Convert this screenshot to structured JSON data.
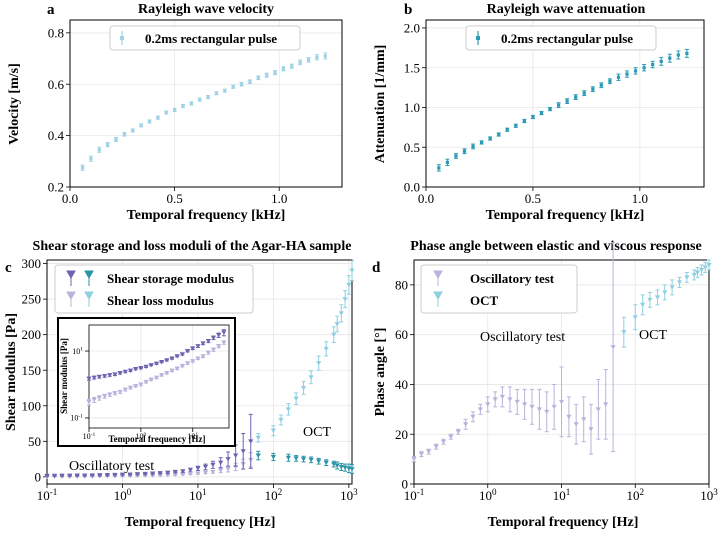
{
  "panels": [
    {
      "letter": "a",
      "title": "Rayleigh wave velocity"
    },
    {
      "letter": "b",
      "title": "Rayleigh wave attenuation"
    },
    {
      "letter": "c",
      "title": "Shear storage and loss moduli of the Agar-HA sample"
    },
    {
      "letter": "d",
      "title": "Phase angle between elastic and viscous response"
    }
  ],
  "colors": {
    "pulse_a": "#9fd2e6",
    "pulse_b": "#2b9bb5",
    "storage_osc": "#6b65b0",
    "storage_oct": "#2a93a8",
    "loss_osc": "#b7b3dc",
    "loss_oct": "#8fcfe2",
    "phase_osc": "#b7b3dc",
    "phase_oct": "#8fcfe2",
    "grid": "#e6e6e6"
  },
  "chart_data": [
    {
      "id": "a",
      "type": "scatter",
      "title": "Rayleigh wave velocity",
      "xlabel": "Temporal frequency [kHz]",
      "ylabel": "Velocity [m/s]",
      "xlim": [
        0,
        1.3
      ],
      "ylim": [
        0.2,
        0.85
      ],
      "xticks": [
        0.0,
        0.5,
        1.0
      ],
      "xticklabels": [
        "0.0",
        "0.5",
        "1.0"
      ],
      "yticks": [
        0.2,
        0.4,
        0.6,
        0.8
      ],
      "yticklabels": [
        "0.2",
        "0.4",
        "0.6",
        "0.8"
      ],
      "legend": [
        "0.2ms rectangular pulse"
      ],
      "legend_position": "top-left",
      "series": [
        {
          "name": "0.2ms rectangular pulse",
          "x": [
            0.06,
            0.1,
            0.14,
            0.18,
            0.22,
            0.26,
            0.3,
            0.34,
            0.38,
            0.42,
            0.46,
            0.5,
            0.54,
            0.58,
            0.62,
            0.66,
            0.7,
            0.74,
            0.78,
            0.82,
            0.86,
            0.9,
            0.94,
            0.98,
            1.02,
            1.06,
            1.1,
            1.14,
            1.18,
            1.22
          ],
          "y": [
            0.275,
            0.31,
            0.345,
            0.365,
            0.385,
            0.405,
            0.42,
            0.44,
            0.455,
            0.47,
            0.49,
            0.5,
            0.515,
            0.525,
            0.54,
            0.55,
            0.565,
            0.575,
            0.59,
            0.6,
            0.61,
            0.625,
            0.635,
            0.645,
            0.66,
            0.67,
            0.685,
            0.695,
            0.705,
            0.71
          ],
          "err": [
            0.01,
            0.01,
            0.01,
            0.008,
            0.008,
            0.007,
            0.006,
            0.006,
            0.006,
            0.006,
            0.006,
            0.006,
            0.006,
            0.006,
            0.006,
            0.006,
            0.006,
            0.006,
            0.006,
            0.007,
            0.007,
            0.007,
            0.008,
            0.008,
            0.008,
            0.008,
            0.009,
            0.009,
            0.01,
            0.012
          ]
        }
      ]
    },
    {
      "id": "b",
      "type": "scatter",
      "title": "Rayleigh wave attenuation",
      "xlabel": "Temporal frequency [kHz]",
      "ylabel": "Attenuation [1/mm]",
      "xlim": [
        0,
        1.3
      ],
      "ylim": [
        0,
        2.1
      ],
      "xticks": [
        0.0,
        0.5,
        1.0
      ],
      "xticklabels": [
        "0.0",
        "0.5",
        "1.0"
      ],
      "yticks": [
        0.0,
        0.5,
        1.0,
        1.5,
        2.0
      ],
      "yticklabels": [
        "0.0",
        "0.5",
        "1.0",
        "1.5",
        "2.0"
      ],
      "legend": [
        "0.2ms rectangular pulse"
      ],
      "legend_position": "top-left",
      "series": [
        {
          "name": "0.2ms rectangular pulse",
          "x": [
            0.06,
            0.1,
            0.14,
            0.18,
            0.22,
            0.26,
            0.3,
            0.34,
            0.38,
            0.42,
            0.46,
            0.5,
            0.54,
            0.58,
            0.62,
            0.66,
            0.7,
            0.74,
            0.78,
            0.82,
            0.86,
            0.9,
            0.94,
            0.98,
            1.02,
            1.06,
            1.1,
            1.14,
            1.18,
            1.22
          ],
          "y": [
            0.24,
            0.31,
            0.39,
            0.45,
            0.51,
            0.56,
            0.61,
            0.66,
            0.72,
            0.77,
            0.83,
            0.88,
            0.93,
            0.98,
            1.03,
            1.08,
            1.13,
            1.18,
            1.23,
            1.28,
            1.33,
            1.38,
            1.42,
            1.46,
            1.5,
            1.54,
            1.58,
            1.62,
            1.66,
            1.68
          ],
          "err": [
            0.04,
            0.04,
            0.03,
            0.03,
            0.03,
            0.02,
            0.02,
            0.02,
            0.02,
            0.02,
            0.02,
            0.02,
            0.02,
            0.02,
            0.03,
            0.03,
            0.03,
            0.03,
            0.03,
            0.03,
            0.03,
            0.04,
            0.04,
            0.04,
            0.04,
            0.04,
            0.05,
            0.05,
            0.05,
            0.05
          ]
        }
      ]
    },
    {
      "id": "c",
      "type": "scatter",
      "title": "Shear storage and loss moduli of the Agar-HA sample",
      "xlabel": "Temporal frequency [Hz]",
      "ylabel": "Shear modulus [Pa]",
      "xscale": "log",
      "xlim": [
        0.1,
        1100
      ],
      "ylim": [
        -10,
        305
      ],
      "xticks": [
        0.1,
        1,
        10,
        100,
        1000
      ],
      "xticklabels": [
        "10^-1",
        "10^0",
        "10^1",
        "10^2",
        "10^3"
      ],
      "yticks": [
        0,
        50,
        100,
        150,
        200,
        250,
        300
      ],
      "yticklabels": [
        "0",
        "50",
        "100",
        "150",
        "200",
        "250",
        "300"
      ],
      "legend": [
        "Shear storage modulus",
        "Shear loss modulus"
      ],
      "legend_position": "top-left",
      "annotations": [
        "Oscillatory test",
        "OCT"
      ],
      "series": [
        {
          "name": "Shear storage modulus (oscillatory)",
          "x": [
            0.1,
            0.126,
            0.158,
            0.2,
            0.251,
            0.316,
            0.398,
            0.501,
            0.631,
            0.794,
            1.0,
            1.26,
            1.58,
            2.0,
            2.51,
            3.16,
            3.98,
            5.01,
            6.31,
            7.94,
            10,
            12.6,
            15.8,
            20,
            25.1,
            31.6,
            39.8,
            50.1
          ],
          "y": [
            1.5,
            1.6,
            1.7,
            1.8,
            1.9,
            2.0,
            2.2,
            2.4,
            2.6,
            2.9,
            3.1,
            3.4,
            3.8,
            4.2,
            4.7,
            5.3,
            6.0,
            7,
            8,
            10,
            12,
            14,
            17,
            20,
            25,
            30,
            36,
            50
          ],
          "err": [
            0.5,
            0.5,
            0.5,
            0.5,
            0.5,
            0.5,
            0.5,
            0.5,
            0.5,
            0.5,
            0.5,
            0.6,
            0.6,
            0.6,
            0.7,
            0.8,
            1,
            1,
            1.5,
            2,
            3,
            4,
            5,
            7,
            10,
            15,
            25,
            38
          ]
        },
        {
          "name": "Shear storage modulus (OCT)",
          "x": [
            63,
            100,
            158,
            200,
            251,
            316,
            398,
            501,
            631,
            700,
            794,
            891,
            1000,
            1100
          ],
          "y": [
            30,
            28,
            27,
            26,
            25,
            24,
            22,
            20,
            18,
            16,
            14,
            13,
            12,
            11
          ],
          "err": [
            6,
            5,
            5,
            4,
            4,
            4,
            4,
            4,
            4,
            5,
            5,
            5,
            6,
            6
          ]
        },
        {
          "name": "Shear loss modulus (oscillatory)",
          "x": [
            0.1,
            0.126,
            0.158,
            0.2,
            0.251,
            0.316,
            0.398,
            0.501,
            0.631,
            0.794,
            1.0,
            1.26,
            1.58,
            2.0,
            2.51,
            3.16,
            3.98,
            5.01,
            6.31,
            7.94,
            10,
            12.6,
            15.8,
            20,
            25.1,
            31.6,
            39.8,
            50.1
          ],
          "y": [
            0.3,
            0.35,
            0.4,
            0.45,
            0.5,
            0.55,
            0.6,
            0.7,
            0.8,
            0.9,
            1.0,
            1.2,
            1.4,
            1.6,
            1.9,
            2.2,
            2.6,
            3,
            3.6,
            4.3,
            5,
            6,
            7,
            9,
            11,
            14,
            18,
            24
          ],
          "err": [
            0.2,
            0.2,
            0.2,
            0.2,
            0.2,
            0.2,
            0.2,
            0.2,
            0.2,
            0.2,
            0.3,
            0.3,
            0.3,
            0.4,
            0.4,
            0.5,
            0.6,
            0.7,
            0.8,
            1,
            1.2,
            1.5,
            2,
            3,
            4,
            5,
            7,
            10
          ]
        },
        {
          "name": "Shear loss modulus (OCT)",
          "x": [
            63,
            100,
            126,
            158,
            200,
            251,
            316,
            398,
            501,
            631,
            700,
            794,
            891,
            1000,
            1100
          ],
          "y": [
            55,
            65,
            80,
            95,
            110,
            125,
            140,
            160,
            180,
            200,
            215,
            230,
            250,
            270,
            290
          ],
          "err": [
            6,
            7,
            7,
            8,
            8,
            9,
            9,
            10,
            10,
            11,
            11,
            12,
            12,
            13,
            14
          ]
        }
      ],
      "inset": {
        "xlabel": "Temporal frequency [Hz]",
        "ylabel": "Shear modulus [Pa]",
        "xscale": "log",
        "yscale": "log",
        "xlim": [
          0.1,
          50
        ],
        "ylim": [
          0.05,
          60
        ],
        "xticks": [
          0.1,
          1,
          10
        ],
        "xticklabels": [
          "10^-1",
          "10^0",
          "10^1"
        ],
        "yticks": [
          0.1,
          10
        ],
        "yticklabels": [
          "10^-1",
          "10^1"
        ]
      }
    },
    {
      "id": "d",
      "type": "scatter",
      "title": "Phase angle between elastic and viscous response",
      "xlabel": "Temporal frequency [Hz]",
      "ylabel": "Phase angle [°]",
      "xscale": "log",
      "xlim": [
        0.1,
        1000
      ],
      "ylim": [
        0,
        90
      ],
      "xticks": [
        0.1,
        1,
        10,
        100,
        1000
      ],
      "xticklabels": [
        "10^-1",
        "10^0",
        "10^1",
        "10^2",
        "10^3"
      ],
      "yticks": [
        0,
        20,
        40,
        60,
        80
      ],
      "yticklabels": [
        "0",
        "20",
        "40",
        "60",
        "80"
      ],
      "legend": [
        "Oscillatory test",
        "OCT"
      ],
      "legend_position": "top-left",
      "annotations": [
        "Oscillatory test",
        "OCT"
      ],
      "series": [
        {
          "name": "Oscillatory test",
          "x": [
            0.1,
            0.126,
            0.158,
            0.2,
            0.251,
            0.316,
            0.398,
            0.501,
            0.631,
            0.794,
            1.0,
            1.26,
            1.58,
            2.0,
            2.51,
            3.16,
            3.98,
            5.01,
            6.31,
            7.94,
            10,
            12.6,
            15.8,
            20,
            25.1,
            31.6,
            39.8,
            50.1
          ],
          "y": [
            10,
            12,
            13,
            15,
            17,
            19,
            21,
            24,
            27,
            30,
            32,
            34,
            35,
            34,
            33,
            32,
            31,
            30,
            29,
            31,
            33,
            27,
            24,
            26,
            22,
            30,
            32,
            55
          ],
          "err": [
            1,
            1,
            1,
            1,
            1,
            1,
            1,
            2,
            2,
            2,
            3,
            3,
            4,
            5,
            5,
            6,
            7,
            8,
            8,
            9,
            14,
            8,
            8,
            9,
            10,
            12,
            14,
            42
          ]
        },
        {
          "name": "OCT",
          "x": [
            70,
            100,
            126,
            158,
            200,
            251,
            316,
            398,
            501,
            631,
            700,
            794,
            891,
            1000
          ],
          "y": [
            61,
            67,
            72,
            74,
            75,
            77,
            79,
            81,
            83,
            84,
            85,
            86,
            87,
            88
          ],
          "err": [
            6,
            5,
            4,
            3,
            3,
            3,
            3,
            2,
            2,
            2,
            2,
            2,
            2,
            2
          ]
        }
      ]
    }
  ]
}
